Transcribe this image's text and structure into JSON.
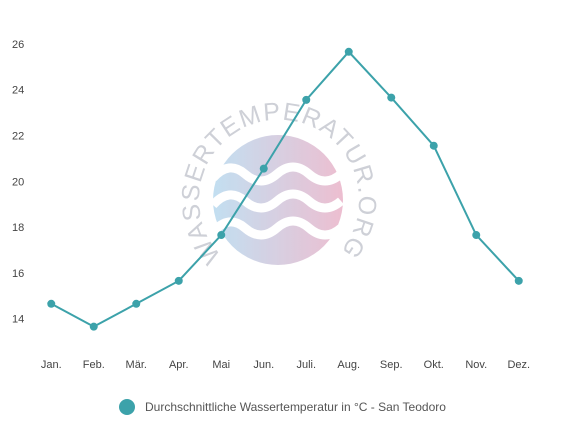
{
  "chart_data": {
    "type": "line",
    "watermark": "WASSERTEMPERATUR.ORG",
    "categories": [
      "Jan.",
      "Feb.",
      "Mär.",
      "Apr.",
      "Mai",
      "Jun.",
      "Juli.",
      "Aug.",
      "Sep.",
      "Okt.",
      "Nov.",
      "Dez."
    ],
    "series": [
      {
        "name": "Durchschnittliche Wassertemperatur in °C - San Teodoro",
        "color": "#3ca2aa",
        "values": [
          14.7,
          13.7,
          14.7,
          15.7,
          17.7,
          20.6,
          23.6,
          25.7,
          23.7,
          21.6,
          17.7,
          15.7
        ]
      }
    ],
    "ylim": [
      12.9,
      27
    ],
    "yticks": [
      14,
      16,
      18,
      20,
      22,
      24,
      26
    ],
    "grid": false,
    "legend": "bottom"
  }
}
